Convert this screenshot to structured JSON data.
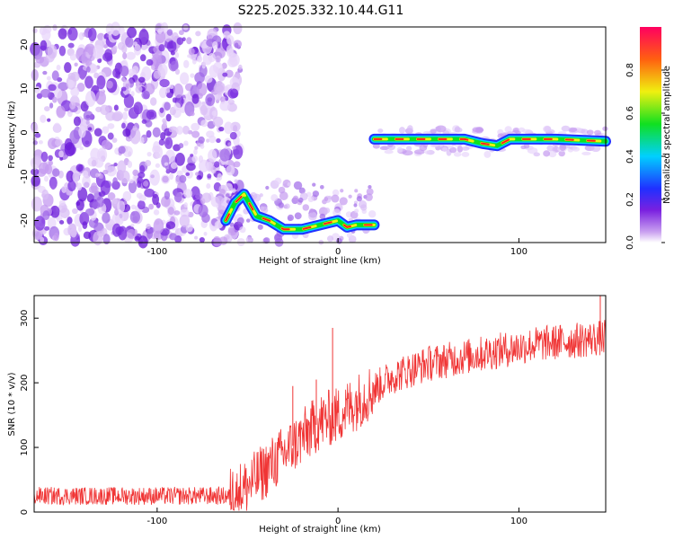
{
  "figure": {
    "title": "S225.2025.332.10.44.G11"
  },
  "chart_data": [
    {
      "type": "heatmap",
      "xlabel": "Height of straight line (km)",
      "ylabel": "Frequency (Hz)",
      "xlim": [
        -168,
        148
      ],
      "ylim": [
        -25,
        24
      ],
      "xticks": [
        -100,
        0,
        100
      ],
      "yticks": [
        -20,
        -10,
        0,
        10,
        20
      ],
      "colorbar": {
        "label": "Normalized spectral amplitude",
        "range": [
          0,
          1
        ],
        "ticks": [
          "0.0",
          "0.2",
          "0.4",
          "0.6",
          "0.8"
        ]
      },
      "ridge": [
        {
          "x": -62,
          "y": -20
        },
        {
          "x": -57,
          "y": -16
        },
        {
          "x": -52,
          "y": -14
        },
        {
          "x": -45,
          "y": -19
        },
        {
          "x": -38,
          "y": -20
        },
        {
          "x": -30,
          "y": -22
        },
        {
          "x": -20,
          "y": -22
        },
        {
          "x": -10,
          "y": -21
        },
        {
          "x": 0,
          "y": -20
        },
        {
          "x": 5,
          "y": -21.5
        },
        {
          "x": 10,
          "y": -21
        },
        {
          "x": 20,
          "y": -21
        },
        {
          "x": 20,
          "y": -1.5
        },
        {
          "x": 40,
          "y": -1.5
        },
        {
          "x": 70,
          "y": -1.5
        },
        {
          "x": 80,
          "y": -2.5
        },
        {
          "x": 88,
          "y": -3
        },
        {
          "x": 95,
          "y": -1.5
        },
        {
          "x": 120,
          "y": -1.5
        },
        {
          "x": 148,
          "y": -2
        }
      ]
    },
    {
      "type": "line",
      "xlabel": "Height of straight line (km)",
      "ylabel": "SNR (10 * v/v)",
      "xlim": [
        -168,
        148
      ],
      "ylim": [
        0,
        335
      ],
      "xticks": [
        -100,
        0,
        100
      ],
      "yticks": [
        0,
        100,
        200,
        300
      ],
      "series": [
        {
          "color": "#f03535",
          "trend": [
            {
              "x": -168,
              "y": 25
            },
            {
              "x": -60,
              "y": 25
            },
            {
              "x": -50,
              "y": 40
            },
            {
              "x": -40,
              "y": 65
            },
            {
              "x": -30,
              "y": 90
            },
            {
              "x": -20,
              "y": 115
            },
            {
              "x": -10,
              "y": 140
            },
            {
              "x": 0,
              "y": 150
            },
            {
              "x": 10,
              "y": 170
            },
            {
              "x": 20,
              "y": 190
            },
            {
              "x": 30,
              "y": 210
            },
            {
              "x": 50,
              "y": 230
            },
            {
              "x": 70,
              "y": 240
            },
            {
              "x": 90,
              "y": 250
            },
            {
              "x": 110,
              "y": 260
            },
            {
              "x": 130,
              "y": 265
            },
            {
              "x": 148,
              "y": 270
            }
          ],
          "spikes": [
            {
              "x": -25,
              "y": 195
            },
            {
              "x": -12,
              "y": 205
            },
            {
              "x": -3,
              "y": 285
            },
            {
              "x": 145,
              "y": 335
            }
          ]
        }
      ]
    }
  ]
}
